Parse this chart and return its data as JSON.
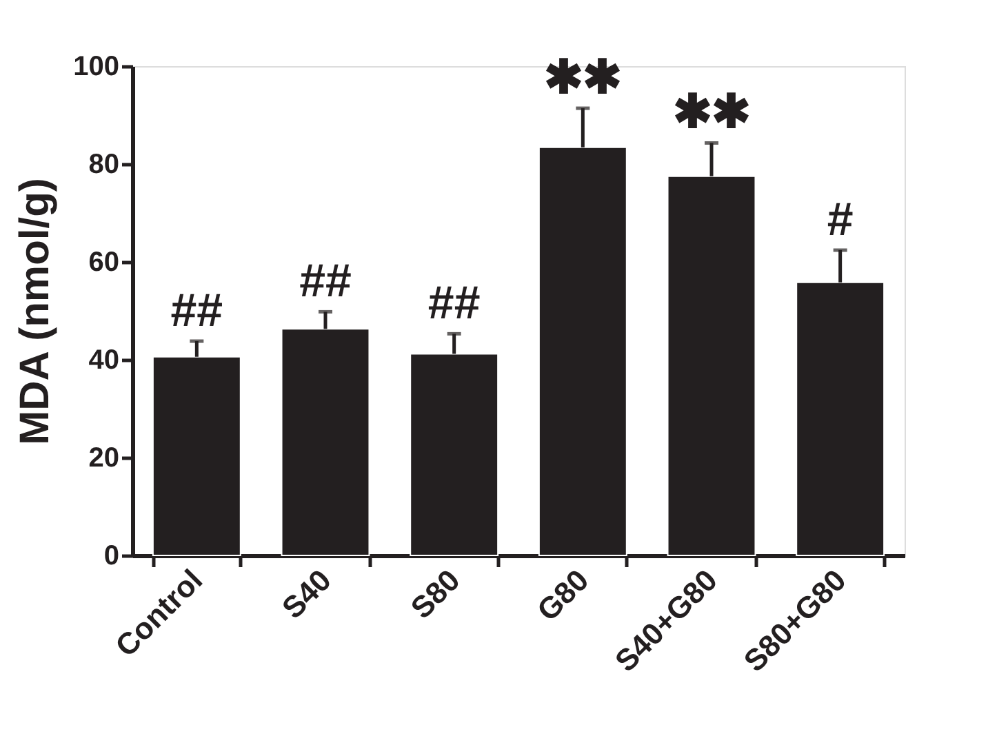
{
  "chart_data": {
    "type": "bar",
    "ylabel": "MDA (nmol/g)",
    "categories": [
      "Control",
      "S40",
      "S80",
      "G80",
      "S40+G80",
      "S80+G80"
    ],
    "values": [
      40.6,
      46.3,
      41.2,
      83.4,
      77.5,
      55.8
    ],
    "errors": [
      3.2,
      3.5,
      4.1,
      8.0,
      6.8,
      6.6
    ],
    "color": "#231f20",
    "ylim": [
      0,
      100
    ],
    "yticks": [
      0,
      20,
      40,
      60,
      80,
      100
    ],
    "grid": false,
    "annotations": [
      {
        "text": "##",
        "x": "Control",
        "y": 43.8
      },
      {
        "text": "##",
        "x": "S40",
        "y": 49.8
      },
      {
        "text": "##",
        "x": "S80",
        "y": 45.3
      },
      {
        "text": "✱✱",
        "x": "G80",
        "y": 91.4
      },
      {
        "text": "✱✱",
        "x": "S40+G80",
        "y": 84.3
      },
      {
        "text": "#",
        "x": "S80+G80",
        "y": 62.4
      }
    ]
  }
}
